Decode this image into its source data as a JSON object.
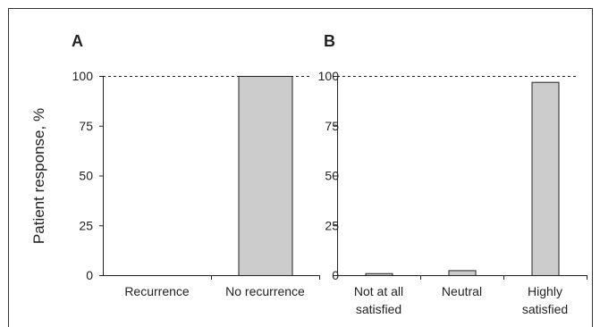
{
  "colors": {
    "bar_fill": "#cccccc",
    "bar_stroke": "#222222",
    "axis": "#222222",
    "reference_line": "#222222",
    "frame": "#333333"
  },
  "chart_data": [
    {
      "panel_label": "A",
      "type": "bar",
      "categories": [
        [
          "Recurrence"
        ],
        [
          "No recurrence"
        ]
      ],
      "values": [
        0,
        100
      ],
      "ylabel": "Patient response,  %",
      "ylim": [
        0,
        100
      ],
      "yticks": [
        "0",
        "25",
        "50",
        "75",
        "100"
      ],
      "reference_line": {
        "value": 100,
        "style": "dashed"
      },
      "grid": false,
      "legend": "none"
    },
    {
      "panel_label": "B",
      "type": "bar",
      "categories": [
        [
          "Not at all",
          "satisfied"
        ],
        [
          "Neutral"
        ],
        [
          "Highly",
          "satisfied"
        ]
      ],
      "values": [
        1,
        2.5,
        97
      ],
      "ylim": [
        0,
        100
      ],
      "yticks": [
        "0",
        "25",
        "50",
        "75",
        "100"
      ],
      "reference_line": {
        "value": 100,
        "style": "dashed"
      },
      "grid": false,
      "legend": "none"
    }
  ]
}
